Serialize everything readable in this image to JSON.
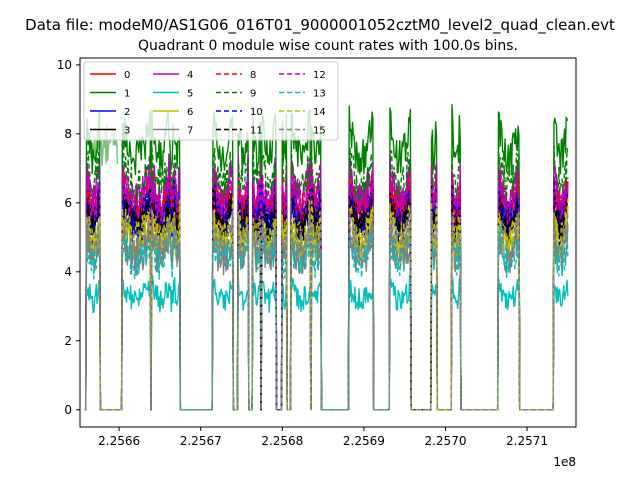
{
  "window": {
    "suptitle": "Data file: modeM0/AS1G06_016T01_9000001052cztM0_level2_quad_clean.evt"
  },
  "chart_data": {
    "type": "line",
    "title": "Quadrant 0 module wise count rates with 100.0s bins.",
    "xlabel": "",
    "ylabel": "",
    "x_offset_label": "1e8",
    "xlim": [
      225655200,
      225716000
    ],
    "ylim": [
      -0.5,
      10.2
    ],
    "x_ticks": [
      225660000,
      225670000,
      225680000,
      225690000,
      225700000,
      225710000
    ],
    "x_tick_labels": [
      "2.2566",
      "2.2567",
      "2.2568",
      "2.2569",
      "2.2570",
      "2.2571"
    ],
    "y_ticks": [
      0,
      2,
      4,
      6,
      8,
      10
    ],
    "y_tick_labels": [
      "0",
      "2",
      "4",
      "6",
      "8",
      "10"
    ],
    "legend_position": "top-left",
    "legend_columns": 4,
    "on_intervals": [
      [
        225656000,
        225657600
      ],
      [
        225660400,
        225663800
      ],
      [
        225664000,
        225666100
      ],
      [
        225666200,
        225666700
      ],
      [
        225666800,
        225667400
      ],
      [
        225671500,
        225673900
      ],
      [
        225674600,
        225675800
      ],
      [
        225676400,
        225677300
      ],
      [
        225677500,
        225679200
      ],
      [
        225680000,
        225680500
      ],
      [
        225681100,
        225683400
      ],
      [
        225683600,
        225684700
      ],
      [
        225688200,
        225691100
      ],
      [
        225693200,
        225695700
      ],
      [
        225698300,
        225698900
      ],
      [
        225700800,
        225701800
      ],
      [
        225706500,
        225709000
      ],
      [
        225713300,
        225715000
      ]
    ],
    "series": [
      {
        "name": "0",
        "color": "#ff0000",
        "dash": "solid",
        "level": 6.4
      },
      {
        "name": "1",
        "color": "#008000",
        "dash": "solid",
        "level": 8.3
      },
      {
        "name": "2",
        "color": "#0000ff",
        "dash": "solid",
        "level": 6.3
      },
      {
        "name": "3",
        "color": "#000000",
        "dash": "solid",
        "level": 6.1
      },
      {
        "name": "4",
        "color": "#bf00bf",
        "dash": "solid",
        "level": 6.9
      },
      {
        "name": "5",
        "color": "#00bfbf",
        "dash": "solid",
        "level": 3.6
      },
      {
        "name": "6",
        "color": "#bfbf00",
        "dash": "solid",
        "level": 5.4
      },
      {
        "name": "7",
        "color": "#808080",
        "dash": "solid",
        "level": 5.0
      },
      {
        "name": "8",
        "color": "#ff0000",
        "dash": "dashed",
        "level": 6.5
      },
      {
        "name": "9",
        "color": "#008000",
        "dash": "dashed",
        "level": 7.3
      },
      {
        "name": "10",
        "color": "#0000ff",
        "dash": "dashed",
        "level": 6.2
      },
      {
        "name": "11",
        "color": "#000000",
        "dash": "dashed",
        "level": 6.0
      },
      {
        "name": "12",
        "color": "#bf00bf",
        "dash": "dashed",
        "level": 6.7
      },
      {
        "name": "13",
        "color": "#00bfbf",
        "dash": "dashed",
        "level": 4.9
      },
      {
        "name": "14",
        "color": "#bfbf00",
        "dash": "dashed",
        "level": 5.6
      },
      {
        "name": "15",
        "color": "#808080",
        "dash": "dashed",
        "level": 5.3
      }
    ],
    "highlight_segment": {
      "series": "1",
      "color": "#80c080",
      "x": [
        225656200,
        225659800
      ],
      "level": 7.6
    }
  }
}
